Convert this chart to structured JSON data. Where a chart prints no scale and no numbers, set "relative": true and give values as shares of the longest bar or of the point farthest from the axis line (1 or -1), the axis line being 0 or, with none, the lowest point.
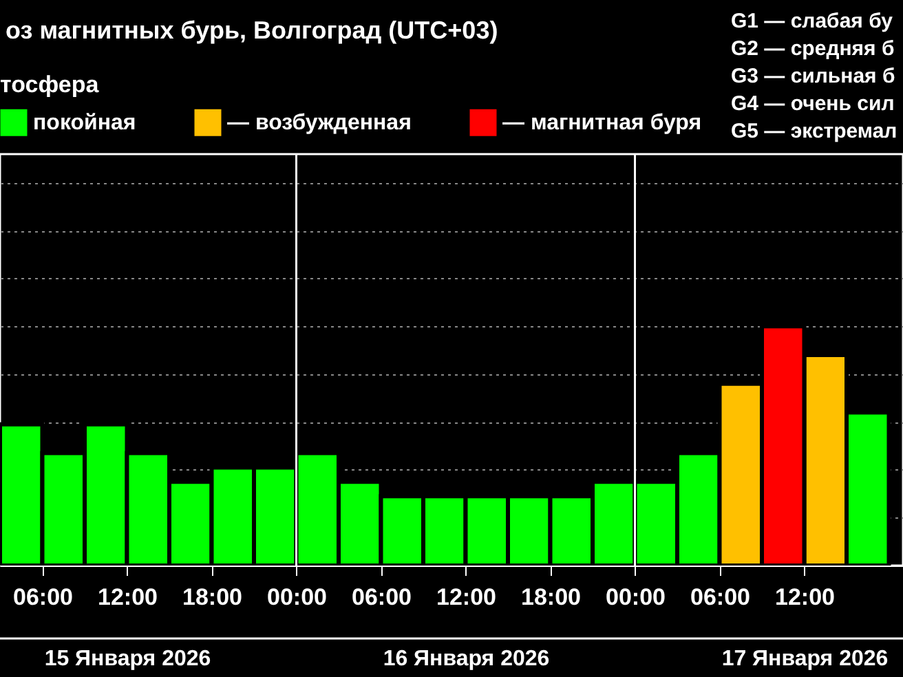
{
  "chart_data": {
    "type": "bar",
    "title": "оз магнитных бурь, Волгоград (UTC+03)",
    "legend_title": "тосфера",
    "relative": true,
    "grid": "y",
    "legend": "top left",
    "x": [
      "2026-01-15T04:30",
      "2026-01-15T07:30",
      "2026-01-15T10:30",
      "2026-01-15T13:30",
      "2026-01-15T16:30",
      "2026-01-15T19:30",
      "2026-01-15T22:30",
      "2026-01-16T01:30",
      "2026-01-16T04:30",
      "2026-01-16T07:30",
      "2026-01-16T10:30",
      "2026-01-16T13:30",
      "2026-01-16T16:30",
      "2026-01-16T19:30",
      "2026-01-16T22:30",
      "2026-01-17T01:30",
      "2026-01-17T04:30",
      "2026-01-17T07:30",
      "2026-01-17T10:30",
      "2026-01-17T13:30",
      "2026-01-17T16:30"
    ],
    "xlim": [
      "2026-01-15T03:00",
      "2026-01-17T19:00"
    ],
    "xticks": [
      {
        "value": "2026-01-15T06:00",
        "label": "06:00"
      },
      {
        "value": "2026-01-15T12:00",
        "label": "12:00"
      },
      {
        "value": "2026-01-15T18:00",
        "label": "18:00"
      },
      {
        "value": "2026-01-16T00:00",
        "label": "00:00"
      },
      {
        "value": "2026-01-16T06:00",
        "label": "06:00"
      },
      {
        "value": "2026-01-16T12:00",
        "label": "12:00"
      },
      {
        "value": "2026-01-16T18:00",
        "label": "18:00"
      },
      {
        "value": "2026-01-17T00:00",
        "label": "00:00"
      },
      {
        "value": "2026-01-17T06:00",
        "label": "06:00"
      },
      {
        "value": "2026-01-17T12:00",
        "label": "12:00"
      }
    ],
    "x2lim": [
      "2026-01-15T03:00",
      "2026-01-17T19:00"
    ],
    "x2ticks": [
      {
        "value": "2026-01-15T12:00",
        "label": "15 Января 2026"
      },
      {
        "value": "2026-01-16T12:00",
        "label": "16 Января 2026"
      },
      {
        "value": "2026-01-17T12:00",
        "label": "17 Января 2026"
      }
    ],
    "series": [
      {
        "name": "покойная",
        "color": "#00ff00",
        "values": [
          0.59,
          0.47,
          0.59,
          0.47,
          0.35,
          0.41,
          0.41,
          0.47,
          0.35,
          0.29,
          0.29,
          0.29,
          0.29,
          0.29,
          0.35,
          0.35,
          0.47,
          null,
          null,
          null,
          0.64
        ]
      },
      {
        "name": "— возбужденная",
        "color": "#ffc000",
        "values": [
          null,
          null,
          null,
          null,
          null,
          null,
          null,
          null,
          null,
          null,
          null,
          null,
          null,
          null,
          null,
          null,
          null,
          0.76,
          null,
          0.88,
          null
        ]
      },
      {
        "name": "— магнитная буря",
        "color": "#ff0000",
        "values": [
          null,
          null,
          null,
          null,
          null,
          null,
          null,
          null,
          null,
          null,
          null,
          null,
          null,
          null,
          null,
          null,
          null,
          null,
          1,
          null,
          null
        ]
      }
    ],
    "ref_lines": [
      {
        "axis": "x",
        "value": "2026-01-16T00:00",
        "label": null,
        "color": "#ffffff"
      },
      {
        "axis": "x",
        "value": "2026-01-17T00:00",
        "label": null,
        "color": "#ffffff"
      }
    ],
    "annotations": [
      "G1 — слабая бу",
      "G2 — средняя б",
      "G3 — сильная б",
      "G4 — очень сил",
      "G5 — экстремал"
    ]
  }
}
